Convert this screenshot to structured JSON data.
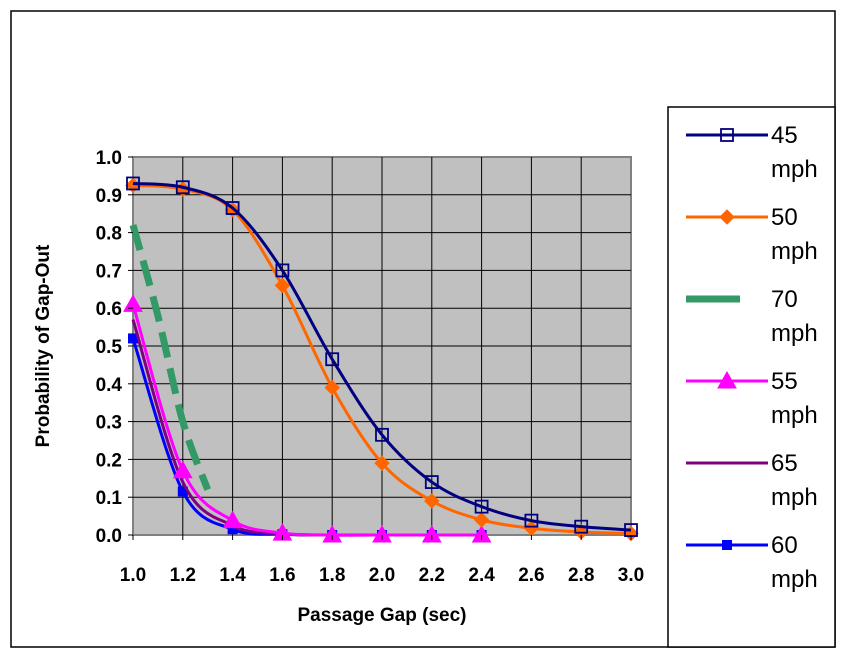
{
  "chart_data": {
    "type": "line",
    "title": "",
    "xlabel": "Passage Gap (sec)",
    "ylabel": "Probability of Gap-Out",
    "xlim": [
      1.0,
      3.0
    ],
    "ylim": [
      0.0,
      1.0
    ],
    "x_ticks": [
      "1.0",
      "1.2",
      "1.4",
      "1.6",
      "1.8",
      "2.0",
      "2.2",
      "2.4",
      "2.6",
      "2.8",
      "3.0"
    ],
    "y_ticks": [
      "0.0",
      "0.1",
      "0.2",
      "0.3",
      "0.4",
      "0.5",
      "0.6",
      "0.7",
      "0.8",
      "0.9",
      "1.0"
    ],
    "grid": true,
    "legend_position": "right",
    "series": [
      {
        "name": "45 mph",
        "color": "#000080",
        "marker": "square-open",
        "dash": "solid",
        "x": [
          1.0,
          1.2,
          1.4,
          1.6,
          1.8,
          2.0,
          2.2,
          2.4,
          2.6,
          2.8,
          3.0
        ],
        "y": [
          0.93,
          0.92,
          0.865,
          0.7,
          0.465,
          0.265,
          0.14,
          0.075,
          0.038,
          0.022,
          0.013
        ]
      },
      {
        "name": "50 mph",
        "color": "#FF6600",
        "marker": "diamond",
        "dash": "solid",
        "x": [
          1.0,
          1.2,
          1.4,
          1.6,
          1.8,
          2.0,
          2.2,
          2.4,
          2.6,
          2.8,
          3.0
        ],
        "y": [
          0.925,
          0.915,
          0.86,
          0.66,
          0.39,
          0.19,
          0.09,
          0.04,
          0.018,
          0.008,
          0.004
        ]
      },
      {
        "name": "70 mph",
        "color": "#339966",
        "marker": "none",
        "dash": "dashed",
        "x": [
          1.0,
          1.1,
          1.2,
          1.3
        ],
        "y": [
          0.82,
          0.58,
          0.3,
          0.12
        ]
      },
      {
        "name": "55 mph",
        "color": "#FF00FF",
        "marker": "triangle",
        "dash": "solid",
        "x": [
          1.0,
          1.2,
          1.4,
          1.6,
          1.8,
          2.0,
          2.2,
          2.4
        ],
        "y": [
          0.61,
          0.17,
          0.038,
          0.005,
          0.0,
          0.0,
          0.0,
          0.0
        ]
      },
      {
        "name": "65 mph",
        "color": "#800080",
        "marker": "none",
        "dash": "solid",
        "x": [
          1.0,
          1.2,
          1.4,
          1.6,
          1.8,
          2.0,
          2.2,
          2.4
        ],
        "y": [
          0.57,
          0.14,
          0.025,
          0.003,
          0.0,
          0.0,
          0.0,
          0.0
        ]
      },
      {
        "name": "60 mph",
        "color": "#0000FF",
        "marker": "square-small",
        "dash": "solid",
        "x": [
          1.0,
          1.2,
          1.4,
          1.6,
          1.8,
          2.0,
          2.2,
          2.4
        ],
        "y": [
          0.52,
          0.115,
          0.015,
          0.002,
          0.0,
          0.0,
          0.0,
          0.0
        ]
      }
    ]
  }
}
